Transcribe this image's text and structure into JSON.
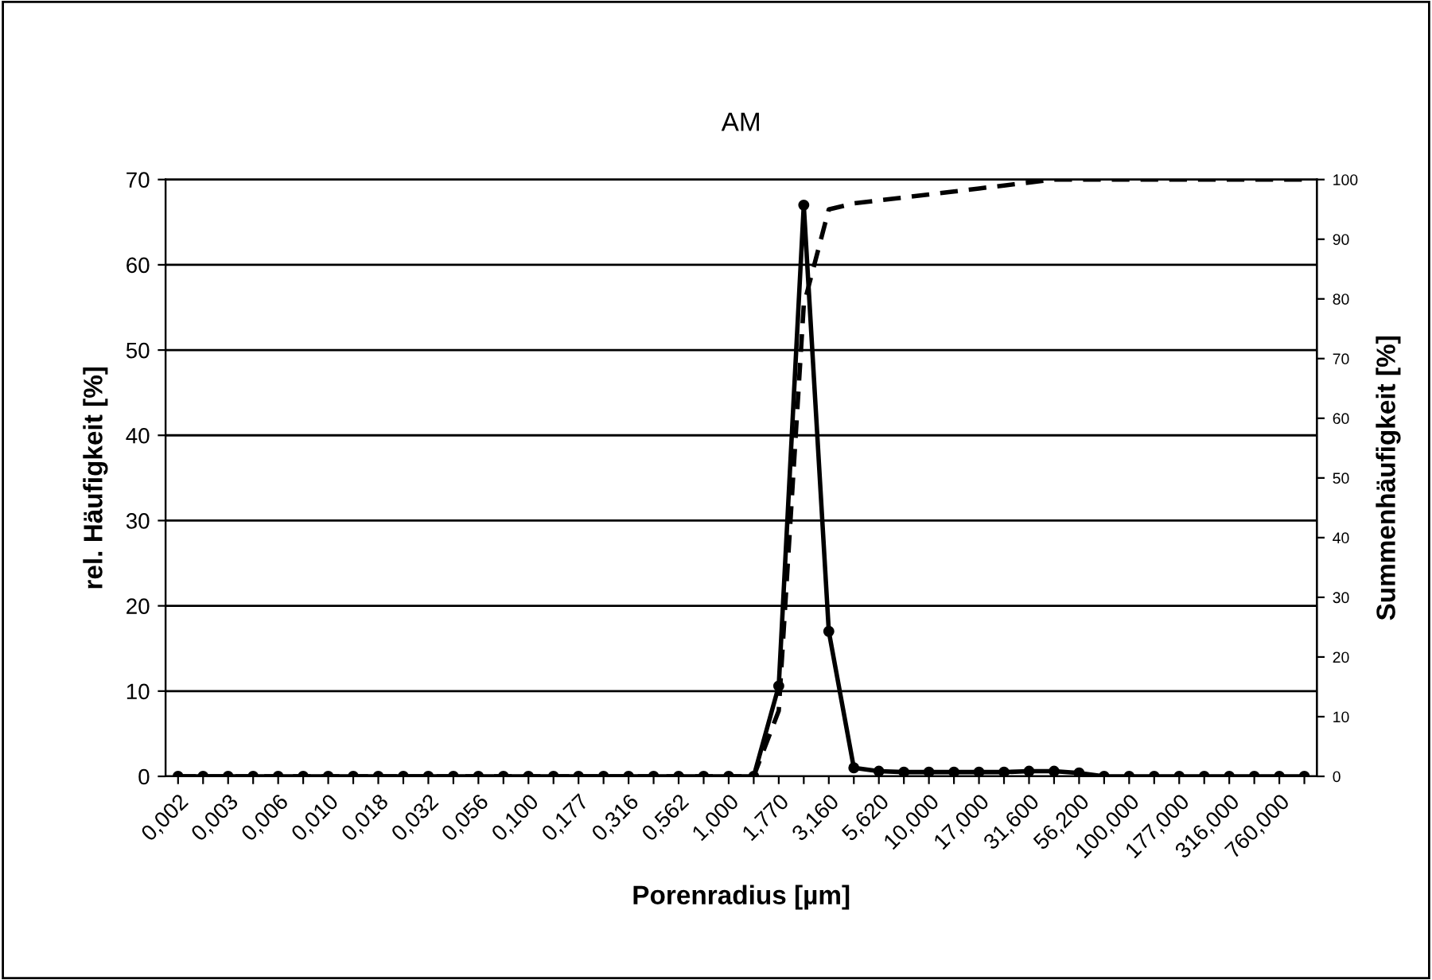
{
  "chart_data": {
    "type": "line",
    "title": "AM",
    "xlabel": "Porenradius [µm]",
    "ylabel": "rel. Häufigkeit [%]",
    "y2label": "Summenhäufigkeit [%]",
    "categories": [
      "0,002",
      null,
      "0,003",
      null,
      "0,006",
      null,
      "0,010",
      null,
      "0,018",
      null,
      "0,032",
      null,
      "0,056",
      null,
      "0,100",
      null,
      "0,177",
      null,
      "0,316",
      null,
      "0,562",
      null,
      "1,000",
      null,
      "1,770",
      null,
      "3,160",
      null,
      "5,620",
      null,
      "10,000",
      null,
      "17,000",
      null,
      "31,600",
      null,
      "56,200",
      null,
      "100,000",
      null,
      "177,000",
      null,
      "316,000",
      null,
      "760,000",
      null
    ],
    "series": [
      {
        "color": "#000000",
        "marker": "circle",
        "line_style": "solid",
        "values": [
          0,
          0,
          0,
          0,
          0,
          0,
          0,
          0,
          0,
          0,
          0,
          0,
          0,
          0,
          0,
          0,
          0,
          0,
          0,
          0,
          0,
          0,
          0,
          0,
          10.6,
          67.0,
          17.0,
          1.0,
          0.6,
          0.5,
          0.5,
          0.5,
          0.5,
          0.5,
          0.6,
          0.6,
          0.4,
          0,
          0,
          0,
          0,
          0,
          0,
          0,
          0,
          0
        ]
      },
      {
        "color": "#000000",
        "marker": "none",
        "line_style": "dashed",
        "axis": "y2",
        "values": [
          0,
          0,
          0,
          0,
          0,
          0,
          0,
          0,
          0,
          0,
          0,
          0,
          0,
          0,
          0,
          0,
          0,
          0,
          0,
          0,
          0,
          0,
          0,
          0,
          11,
          79,
          95,
          96,
          96.5,
          97,
          97.5,
          98,
          98.5,
          99,
          99.5,
          100,
          100,
          100,
          100,
          100,
          100,
          100,
          100,
          100,
          100,
          100
        ]
      }
    ],
    "ylim": [
      0,
      70
    ],
    "yticks": [
      0,
      10,
      20,
      30,
      40,
      50,
      60,
      70
    ],
    "y2lim": [
      0,
      100
    ],
    "y2ticks": [
      0,
      10,
      20,
      30,
      40,
      50,
      60,
      70,
      80,
      90,
      100
    ],
    "grid": "y",
    "legend": false
  }
}
